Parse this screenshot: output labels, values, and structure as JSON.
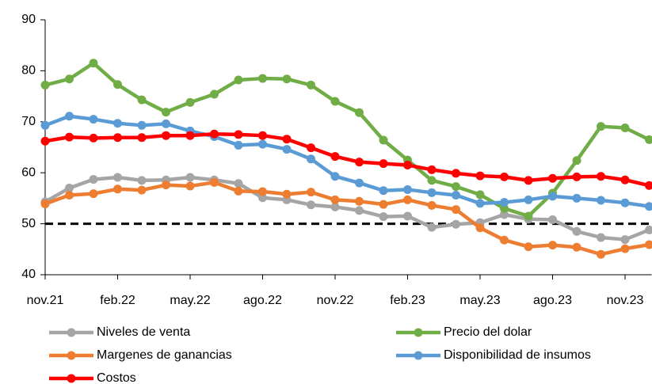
{
  "chart_data": {
    "type": "line",
    "categories": [
      "nov.21",
      null,
      null,
      "feb.22",
      null,
      null,
      "may.22",
      null,
      null,
      "ago.22",
      null,
      null,
      "nov.22",
      null,
      null,
      "feb.23",
      null,
      null,
      "may.23",
      null,
      null,
      "ago.23",
      null,
      null,
      "nov.23",
      null
    ],
    "series": [
      {
        "name": "Niveles de venta",
        "color": "#a5a5a5",
        "values": [
          54.3,
          57.0,
          58.7,
          59.1,
          58.5,
          58.6,
          59.1,
          58.6,
          57.9,
          55.1,
          54.7,
          53.7,
          53.3,
          52.6,
          51.4,
          51.5,
          49.3,
          49.9,
          50.2,
          51.8,
          50.9,
          50.8,
          48.5,
          47.3,
          46.9,
          48.8
        ]
      },
      {
        "name": "Precio del dolar",
        "color": "#70ad47",
        "values": [
          77.2,
          78.4,
          81.5,
          77.3,
          74.3,
          71.9,
          73.8,
          75.4,
          78.2,
          78.5,
          78.4,
          77.2,
          74.0,
          71.8,
          66.4,
          62.5,
          58.5,
          57.3,
          55.7,
          53.0,
          51.5,
          56.0,
          62.4,
          69.1,
          68.8,
          66.5
        ]
      },
      {
        "name": "Margenes de ganancias",
        "color": "#ed7d31",
        "values": [
          53.9,
          55.6,
          55.9,
          56.8,
          56.6,
          57.6,
          57.4,
          58.1,
          56.4,
          56.3,
          55.8,
          56.2,
          54.7,
          54.4,
          53.8,
          54.7,
          53.6,
          52.8,
          49.2,
          46.8,
          45.5,
          45.8,
          45.4,
          44.0,
          45.1,
          45.9
        ]
      },
      {
        "name": "Disponibilidad de insumos",
        "color": "#5b9bd5",
        "values": [
          69.3,
          71.1,
          70.5,
          69.7,
          69.3,
          69.6,
          68.2,
          67.1,
          65.4,
          65.6,
          64.6,
          62.7,
          59.3,
          58.0,
          56.5,
          56.7,
          56.1,
          55.6,
          54.0,
          54.2,
          54.7,
          55.4,
          55.0,
          54.6,
          54.1,
          53.4
        ]
      },
      {
        "name": "Costos",
        "color": "#ff0000",
        "values": [
          66.2,
          67.0,
          66.8,
          66.9,
          66.9,
          67.3,
          67.3,
          67.6,
          67.5,
          67.3,
          66.6,
          64.9,
          63.2,
          62.1,
          61.8,
          61.5,
          60.6,
          59.9,
          59.4,
          59.2,
          58.5,
          58.9,
          59.2,
          59.3,
          58.6,
          57.5
        ]
      }
    ],
    "reference_line": 50,
    "ylim": [
      40,
      90
    ],
    "yticks": [
      40,
      50,
      60,
      70,
      80,
      90
    ]
  }
}
